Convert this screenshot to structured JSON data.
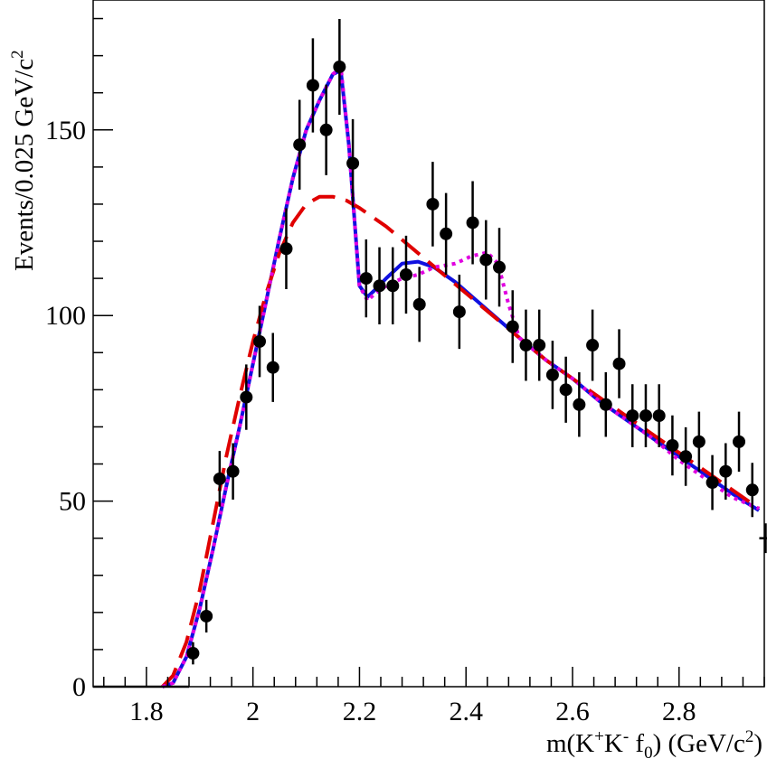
{
  "chart_data": {
    "type": "scatter",
    "title": "",
    "xlabel": {
      "prefix": "m(K",
      "sup1": "+",
      "mid": "K",
      "sup2": "-",
      "f": " f",
      "sub": "0",
      "suffix": ") (GeV/c",
      "sup3": "2",
      "end": ")"
    },
    "ylabel": {
      "main": "Events/0.025 GeV/c",
      "sup": "2"
    },
    "xlim": [
      1.7,
      2.96
    ],
    "ylim": [
      0,
      185
    ],
    "xticks": [
      1.8,
      2.0,
      2.2,
      2.4,
      2.6,
      2.8
    ],
    "xtick_labels": [
      "1.8",
      "2",
      "2.2",
      "2.4",
      "2.6",
      "2.8"
    ],
    "yticks": [
      0,
      50,
      100,
      150
    ],
    "ytick_labels": [
      "0",
      "50",
      "100",
      "150"
    ],
    "grid": false,
    "data_points": {
      "x": [
        1.8375,
        1.8625,
        1.8875,
        1.9125,
        1.9375,
        1.9625,
        1.9875,
        2.0125,
        2.0375,
        2.0625,
        2.0875,
        2.1125,
        2.1375,
        2.1625,
        2.1875,
        2.2125,
        2.2375,
        2.2625,
        2.2875,
        2.3125,
        2.3375,
        2.3625,
        2.3875,
        2.4125,
        2.4375,
        2.4625,
        2.4875,
        2.5125,
        2.5375,
        2.5625,
        2.5875,
        2.6125,
        2.6375,
        2.6625,
        2.6875,
        2.7125,
        2.7375,
        2.7625,
        2.7875,
        2.8125,
        2.8375,
        2.8625,
        2.8875,
        2.9125,
        2.9375,
        2.9625
      ],
      "y": [
        0,
        0,
        9,
        19,
        56,
        58,
        78,
        93,
        86,
        118,
        146,
        162,
        150,
        167,
        141,
        110,
        108,
        108,
        111,
        103,
        130,
        122,
        101,
        125,
        115,
        113,
        97,
        92,
        92,
        84,
        80,
        76,
        92,
        76,
        87,
        73,
        73,
        73,
        65,
        62,
        66,
        55,
        58,
        66,
        53,
        40
      ],
      "yerr": [
        0,
        0,
        3,
        4.4,
        7.5,
        7.6,
        8.8,
        9.6,
        9.3,
        10.9,
        12.1,
        12.7,
        12.2,
        12.9,
        11.9,
        10.5,
        10.4,
        10.4,
        10.5,
        10.1,
        11.4,
        11.0,
        10.0,
        11.2,
        10.7,
        10.6,
        9.8,
        9.6,
        9.6,
        9.2,
        8.9,
        8.7,
        9.6,
        8.7,
        9.3,
        8.5,
        8.5,
        8.5,
        8.1,
        7.9,
        8.1,
        7.4,
        7.6,
        8.1,
        7.3,
        4.0
      ]
    },
    "curves": [
      {
        "style": "solid",
        "color": "#1010e0",
        "x": [
          1.83,
          1.85,
          1.875,
          1.9,
          1.925,
          1.95,
          1.975,
          2.0,
          2.025,
          2.05,
          2.075,
          2.1,
          2.125,
          2.15,
          2.165,
          2.18,
          2.2,
          2.215,
          2.23,
          2.25,
          2.28,
          2.31,
          2.34,
          2.38,
          2.42,
          2.46,
          2.5,
          2.55,
          2.6,
          2.65,
          2.7,
          2.75,
          2.8,
          2.85,
          2.9,
          2.95
        ],
        "y": [
          0,
          1,
          8,
          21,
          37,
          54,
          70,
          87,
          104,
          121,
          137,
          150,
          158,
          165,
          166,
          146,
          108,
          105,
          107,
          110,
          114,
          114.5,
          113,
          109,
          104,
          99,
          94,
          88,
          83,
          77,
          72,
          67,
          62,
          57,
          52,
          47.5
        ]
      },
      {
        "style": "dashed",
        "color": "#e00000",
        "x": [
          1.83,
          1.85,
          1.875,
          1.9,
          1.925,
          1.95,
          1.975,
          2.0,
          2.025,
          2.05,
          2.075,
          2.1,
          2.125,
          2.15,
          2.175,
          2.2,
          2.25,
          2.3,
          2.35,
          2.4,
          2.45,
          2.5,
          2.55,
          2.6,
          2.65,
          2.7,
          2.75,
          2.8,
          2.85,
          2.9,
          2.95
        ],
        "y": [
          0,
          3,
          12,
          26,
          44,
          62,
          78,
          93,
          106,
          117,
          125,
          130,
          132,
          132,
          131,
          129,
          124,
          118,
          112,
          106,
          100,
          94,
          88,
          83,
          78,
          73,
          68,
          63,
          58,
          53,
          48
        ]
      },
      {
        "style": "dotted",
        "color": "#e000e0",
        "x": [
          1.83,
          1.85,
          1.875,
          1.9,
          1.925,
          1.95,
          1.975,
          2.0,
          2.025,
          2.05,
          2.075,
          2.1,
          2.125,
          2.15,
          2.165,
          2.18,
          2.2,
          2.215,
          2.23,
          2.25,
          2.28,
          2.31,
          2.34,
          2.38,
          2.41,
          2.44,
          2.46,
          2.48,
          2.5,
          2.55,
          2.6,
          2.65,
          2.7,
          2.75,
          2.8,
          2.85,
          2.9,
          2.95
        ],
        "y": [
          0,
          1,
          8,
          21,
          37,
          54,
          70,
          87,
          104,
          121,
          137,
          150,
          158,
          165,
          167,
          146,
          108,
          104,
          106,
          108,
          110,
          111,
          113,
          114,
          116,
          117,
          114,
          103,
          94,
          88,
          83,
          77,
          72,
          67,
          61,
          56,
          51,
          48
        ]
      },
      {
        "style": "solid",
        "color": "#000000",
        "x": [
          1.7,
          1.88
        ],
        "y": [
          0,
          0
        ]
      }
    ]
  }
}
